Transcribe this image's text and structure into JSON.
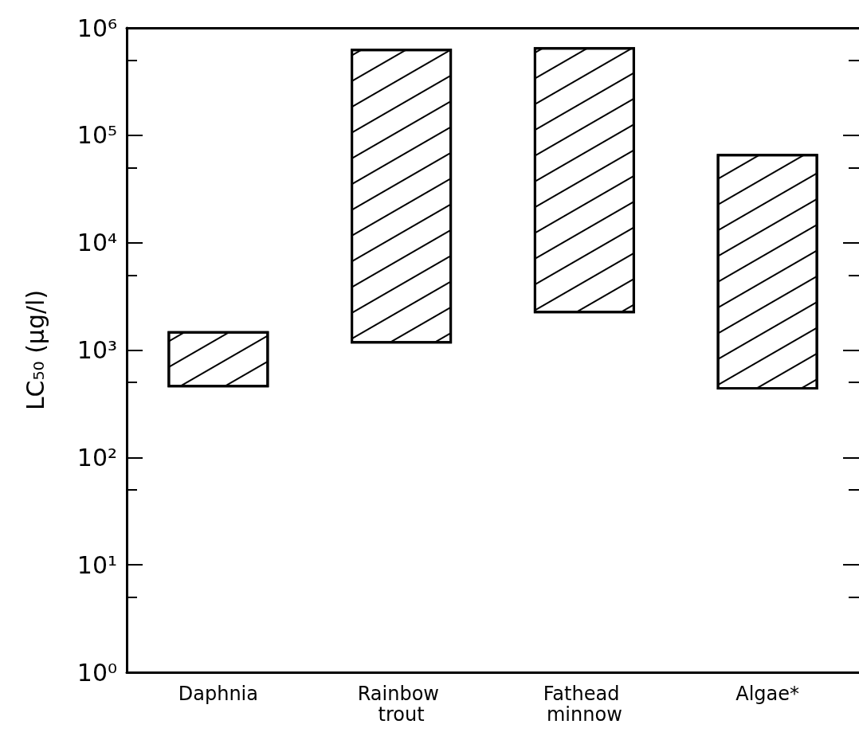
{
  "chart_data": {
    "type": "bar",
    "ylabel": "LC₅₀ (μg/l)",
    "categories": [
      "Daphnia",
      "Rainbow trout",
      "Fathead minnow",
      "Algae*"
    ],
    "base": [
      450,
      1150,
      2200,
      430
    ],
    "values": [
      1050,
      638850,
      657800,
      66570
    ],
    "color": "#000000",
    "log": true,
    "ylim": [
      1,
      1000000
    ],
    "yticks": [
      {
        "value": 1,
        "label": "10⁰"
      },
      {
        "value": 5,
        "label": null
      },
      {
        "value": 10,
        "label": "10¹"
      },
      {
        "value": 50,
        "label": null
      },
      {
        "value": 100,
        "label": "10²"
      },
      {
        "value": 500,
        "label": null
      },
      {
        "value": 1000,
        "label": "10³"
      },
      {
        "value": 5000,
        "label": null
      },
      {
        "value": 10000,
        "label": "10⁴"
      },
      {
        "value": 50000,
        "label": null
      },
      {
        "value": 100000,
        "label": "10⁵"
      },
      {
        "value": 500000,
        "label": null
      },
      {
        "value": 1000000,
        "label": "10⁶"
      }
    ],
    "grid": false
  }
}
